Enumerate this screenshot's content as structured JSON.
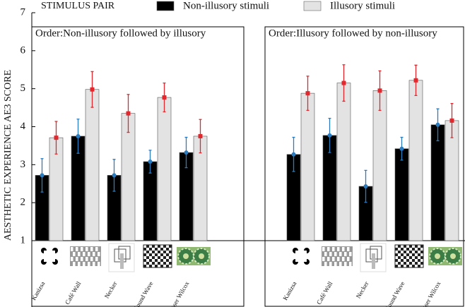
{
  "chart_data": {
    "type": "bar",
    "ylabel": "AESTHETIC EXPERIENCE AE3 SCORE",
    "legend_title": "STIMULUS PAIR",
    "ylim": [
      1,
      7
    ],
    "yticks": [
      1,
      2,
      3,
      4,
      5,
      6,
      7
    ],
    "series_info": [
      {
        "name": "Non-illusory stimuli",
        "color": "#000000",
        "marker_color": "#2b7bbf"
      },
      {
        "name": "Illusory stimuli",
        "color": "#e3e3e3",
        "marker_color": "#e0282e"
      }
    ],
    "panels": [
      {
        "title": "Order:Non-illusory followed by illusory",
        "categories": [
          "Kanizsa",
          "Café Wall",
          "Necker",
          "Sound Wave",
          "Fraser Wilcox"
        ],
        "series": [
          {
            "values": [
              2.72,
              3.75,
              2.72,
              3.08,
              3.32
            ],
            "errors": [
              0.44,
              0.45,
              0.42,
              0.3,
              0.4
            ]
          },
          {
            "values": [
              3.71,
              4.98,
              4.35,
              4.77,
              3.75
            ],
            "errors": [
              0.43,
              0.47,
              0.5,
              0.38,
              0.44
            ]
          }
        ]
      },
      {
        "title": "Order:Illusory followed by non-illusory",
        "categories": [
          "Kanizsa",
          "Café Wall",
          "Necker",
          "Sound Wave",
          "Fraser Wilcox"
        ],
        "series": [
          {
            "values": [
              3.27,
              3.77,
              2.43,
              3.42,
              4.05
            ],
            "errors": [
              0.45,
              0.45,
              0.42,
              0.3,
              0.42
            ]
          },
          {
            "values": [
              4.88,
              5.15,
              4.95,
              5.22,
              4.16
            ],
            "errors": [
              0.45,
              0.48,
              0.52,
              0.4,
              0.45
            ]
          }
        ]
      }
    ]
  }
}
